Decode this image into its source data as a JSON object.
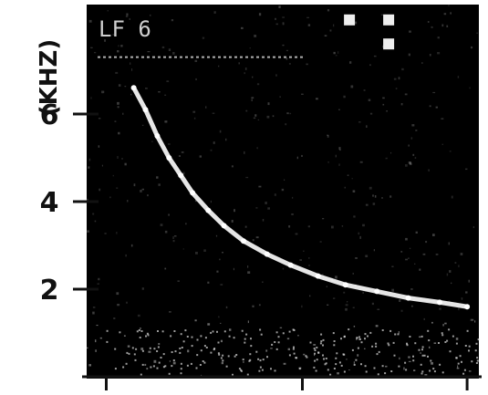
{
  "chart_data": {
    "type": "scatter",
    "title": "",
    "panel_label": "LF 6",
    "ylabel": "(KHZ)",
    "xlabel": "",
    "ylim": [
      0,
      8.5
    ],
    "xlim": [
      0,
      1
    ],
    "yticks": [
      2,
      4,
      6
    ],
    "ytick_labels": [
      "2",
      "4",
      "6"
    ],
    "xticks": [
      0.05,
      0.55,
      0.97
    ],
    "background": "#000000",
    "trace_color": "#ffffff",
    "series": [
      {
        "values": [
          {
            "x": 0.12,
            "y": 6.6
          },
          {
            "x": 0.15,
            "y": 6.1
          },
          {
            "x": 0.18,
            "y": 5.5
          },
          {
            "x": 0.21,
            "y": 5.0
          },
          {
            "x": 0.24,
            "y": 4.6
          },
          {
            "x": 0.27,
            "y": 4.2
          },
          {
            "x": 0.31,
            "y": 3.8
          },
          {
            "x": 0.35,
            "y": 3.45
          },
          {
            "x": 0.4,
            "y": 3.1
          },
          {
            "x": 0.46,
            "y": 2.8
          },
          {
            "x": 0.52,
            "y": 2.55
          },
          {
            "x": 0.59,
            "y": 2.3
          },
          {
            "x": 0.66,
            "y": 2.1
          },
          {
            "x": 0.74,
            "y": 1.95
          },
          {
            "x": 0.82,
            "y": 1.8
          },
          {
            "x": 0.9,
            "y": 1.7
          },
          {
            "x": 0.97,
            "y": 1.6
          }
        ]
      }
    ],
    "reference_line_y": 7.3,
    "markers": [
      {
        "x": 0.67,
        "y": 8.15
      },
      {
        "x": 0.77,
        "y": 8.15
      },
      {
        "x": 0.77,
        "y": 7.6
      }
    ]
  }
}
